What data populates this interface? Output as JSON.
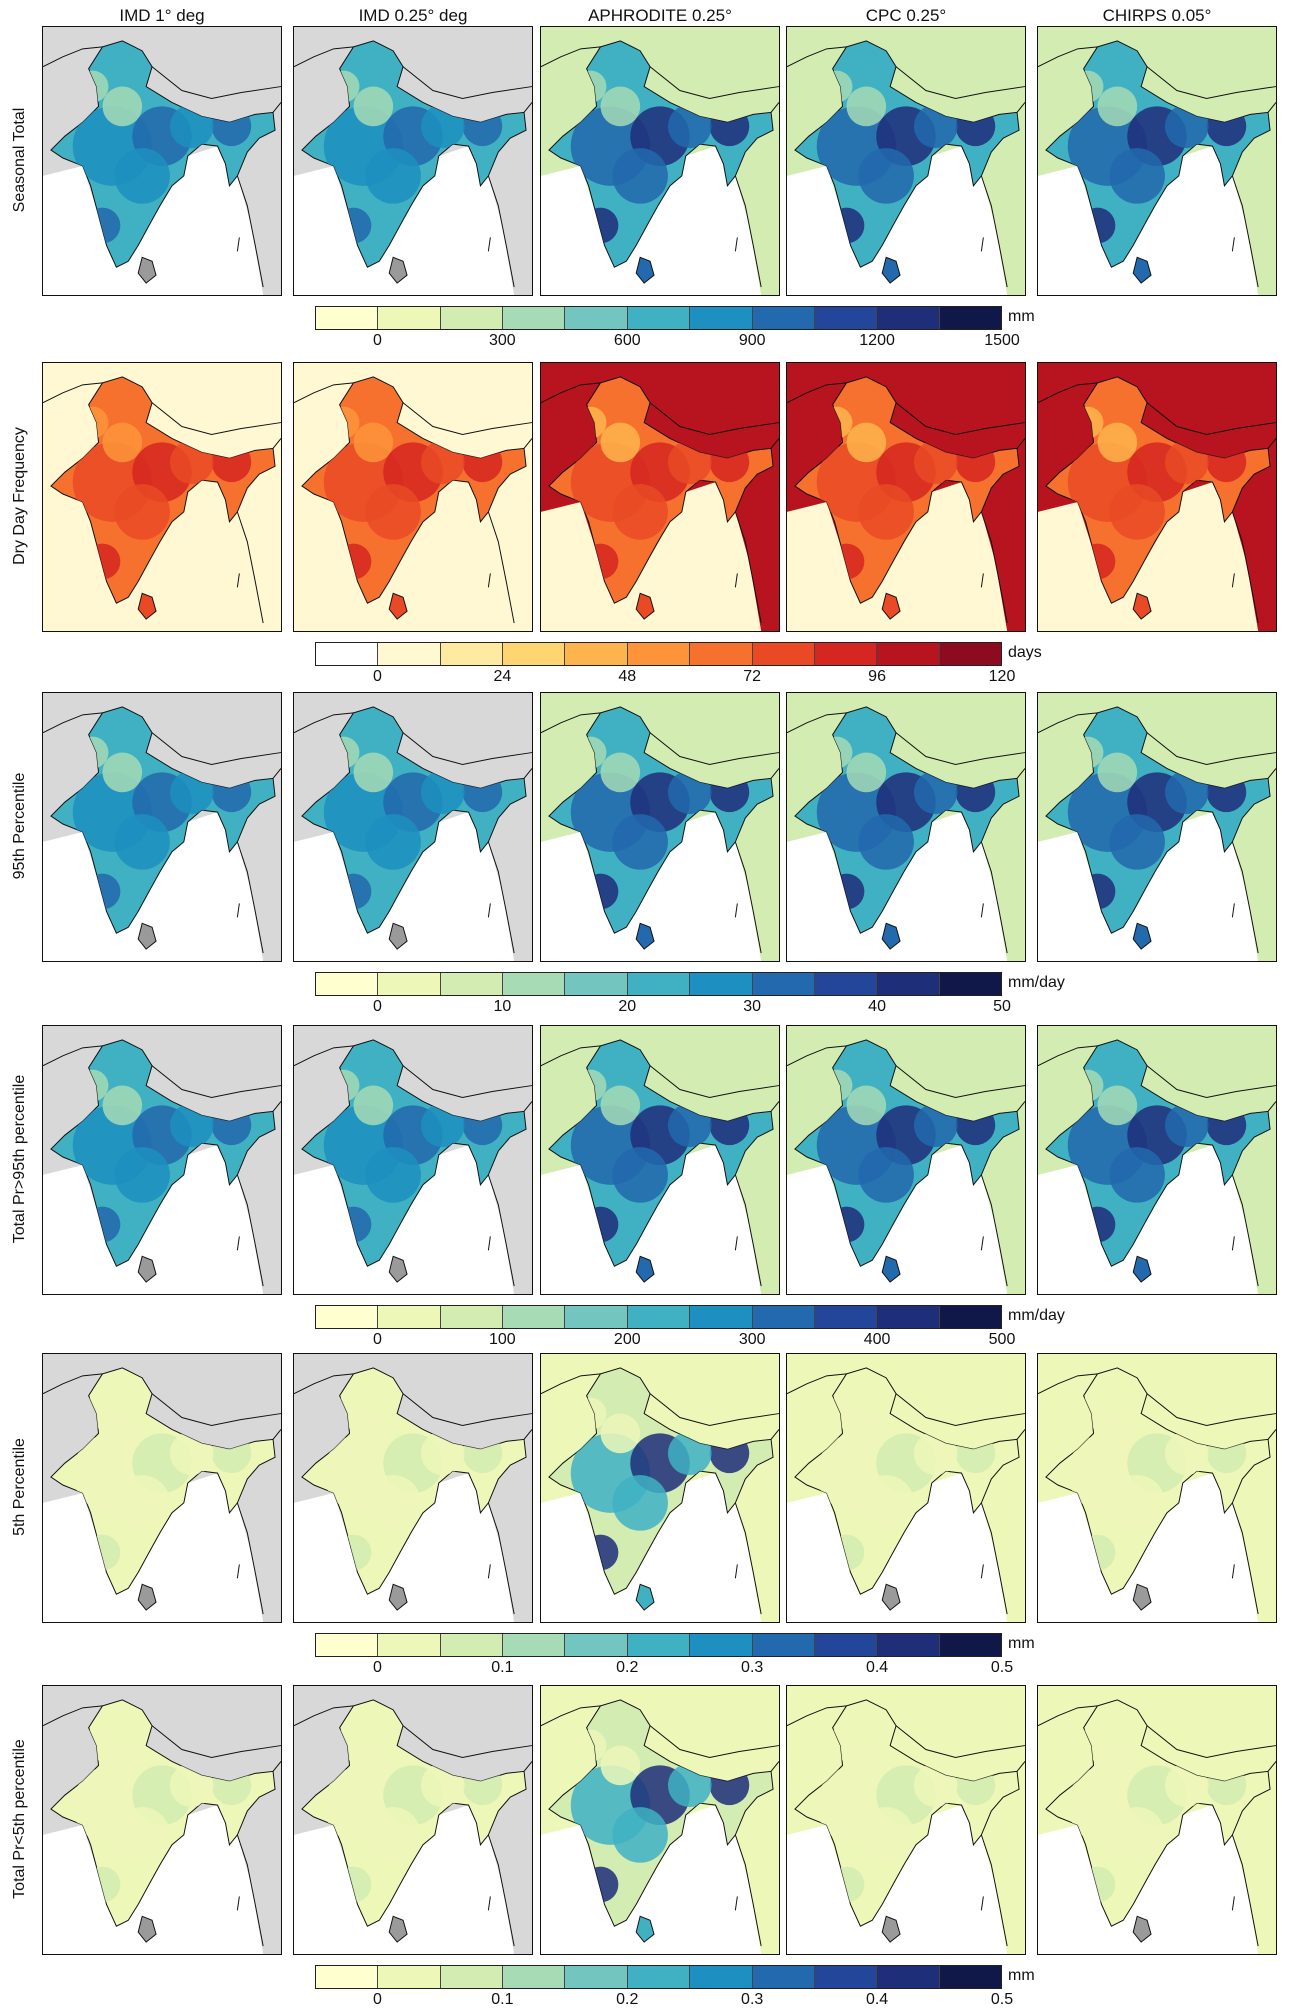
{
  "columns": [
    "IMD 1° deg",
    "IMD 0.25° deg",
    "APHRODITE 0.25°",
    "CPC 0.25°",
    "CHIRPS 0.05°"
  ],
  "rows": [
    {
      "label": "Seasonal Total",
      "unit": "mm",
      "ticks": [
        "0",
        "300",
        "600",
        "900",
        "1200",
        "1500"
      ],
      "palette": [
        "#ffffd0",
        "#edf7b8",
        "#d2ecb2",
        "#a6dbb6",
        "#72c6bf",
        "#40b1c3",
        "#1d8fc0",
        "#2269ad",
        "#23459a",
        "#1f2e79",
        "#10184a"
      ],
      "fields": [
        "blue-mid",
        "blue-mid",
        "blue-high",
        "blue-high",
        "blue-high"
      ]
    },
    {
      "label": "Dry Day Frequency",
      "unit": "days",
      "ticks": [
        "0",
        "24",
        "48",
        "72",
        "96",
        "120"
      ],
      "palette": [
        "#ffffff",
        "#fff8d2",
        "#feeaa0",
        "#fed570",
        "#feb44c",
        "#fd9439",
        "#f6712e",
        "#e94a25",
        "#d52621",
        "#b8141f",
        "#8c0b1f"
      ],
      "fields": [
        "red-mid",
        "red-mid",
        "red-high",
        "red-high",
        "red-high"
      ]
    },
    {
      "label": "95th Percentile",
      "unit": "mm/day",
      "ticks": [
        "0",
        "10",
        "20",
        "30",
        "40",
        "50"
      ],
      "palette": [
        "#ffffd0",
        "#edf7b8",
        "#d2ecb2",
        "#a6dbb6",
        "#72c6bf",
        "#40b1c3",
        "#1d8fc0",
        "#2269ad",
        "#23459a",
        "#1f2e79",
        "#10184a"
      ],
      "fields": [
        "blue-mid",
        "blue-mid",
        "blue-high",
        "blue-high",
        "blue-high"
      ]
    },
    {
      "label": "Total Pr>95th percentile",
      "unit": "mm/day",
      "ticks": [
        "0",
        "100",
        "200",
        "300",
        "400",
        "500"
      ],
      "palette": [
        "#ffffd0",
        "#edf7b8",
        "#d2ecb2",
        "#a6dbb6",
        "#72c6bf",
        "#40b1c3",
        "#1d8fc0",
        "#2269ad",
        "#23459a",
        "#1f2e79",
        "#10184a"
      ],
      "fields": [
        "blue-mid",
        "blue-mid",
        "blue-high",
        "blue-high",
        "blue-high"
      ]
    },
    {
      "label": "5th Percentile",
      "unit": "mm",
      "ticks": [
        "0",
        "0.1",
        "0.2",
        "0.3",
        "0.4",
        "0.5"
      ],
      "palette": [
        "#ffffd0",
        "#edf7b8",
        "#d2ecb2",
        "#a6dbb6",
        "#72c6bf",
        "#40b1c3",
        "#1d8fc0",
        "#2269ad",
        "#23459a",
        "#1f2e79",
        "#10184a"
      ],
      "fields": [
        "low",
        "low",
        "low-east",
        "low",
        "low"
      ]
    },
    {
      "label": "Total Pr<5th percentile",
      "unit": "mm",
      "ticks": [
        "0",
        "0.1",
        "0.2",
        "0.3",
        "0.4",
        "0.5"
      ],
      "palette": [
        "#ffffd0",
        "#edf7b8",
        "#d2ecb2",
        "#a6dbb6",
        "#72c6bf",
        "#40b1c3",
        "#1d8fc0",
        "#2269ad",
        "#23459a",
        "#1f2e79",
        "#10184a"
      ],
      "fields": [
        "low",
        "low",
        "low-east",
        "low",
        "low"
      ]
    }
  ]
}
